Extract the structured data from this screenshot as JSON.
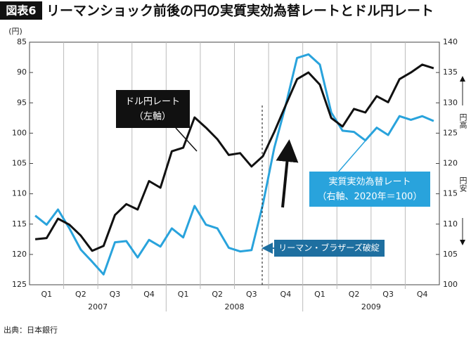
{
  "chart_data": {
    "type": "line",
    "figure_label": "図表6",
    "title": "リーマンショック前後の円の実質実効為替レートとドル円レート",
    "y_unit_label": "(円)",
    "source": "出典：日本銀行",
    "categories": [
      null,
      "Q1",
      null,
      null,
      "Q2",
      null,
      null,
      "Q3",
      null,
      null,
      "Q4",
      null,
      null,
      "Q1",
      null,
      null,
      "Q2",
      null,
      null,
      "Q3",
      null,
      null,
      "Q4",
      null,
      null,
      "Q1",
      null,
      null,
      "Q2",
      null,
      null,
      "Q3",
      null,
      null,
      "Q4",
      null
    ],
    "year_groups": [
      "2007",
      "2008",
      "2009"
    ],
    "ylim": [
      125,
      85
    ],
    "yticks": [
      85,
      90,
      95,
      100,
      105,
      110,
      115,
      120,
      125
    ],
    "y2lim": [
      100,
      140
    ],
    "y2ticks": [
      100,
      105,
      110,
      115,
      120,
      125,
      130,
      135,
      140
    ],
    "y2_notes": {
      "up": "円高",
      "down": "円安"
    },
    "series": [
      {
        "name": "ドル円レート",
        "name_note": "（左軸）",
        "color": "#111111",
        "values": [
          117.5,
          117.3,
          114.1,
          115.1,
          116.9,
          119.4,
          118.6,
          113.5,
          111.7,
          112.6,
          107.9,
          109.0,
          103.0,
          102.4,
          97.4,
          99.1,
          101.0,
          103.6,
          103.3,
          105.5,
          103.8,
          99.8,
          95.4,
          91.1,
          90.0,
          92.0,
          97.5,
          98.9,
          96.0,
          96.6,
          93.9,
          94.9,
          91.1,
          90.0,
          88.7,
          89.3
        ]
      },
      {
        "name": "実質実効為替レート",
        "name_note": "（右軸、2020年＝100）",
        "color": "#29a3dc",
        "axis": "y2",
        "values": [
          111.4,
          109.9,
          112.4,
          109.3,
          105.8,
          103.8,
          101.7,
          107.0,
          107.2,
          104.5,
          107.4,
          106.3,
          109.3,
          107.8,
          113.0,
          109.9,
          109.3,
          106.1,
          105.5,
          105.7,
          113.3,
          122.6,
          129.6,
          137.4,
          138.0,
          136.3,
          128.4,
          125.4,
          125.2,
          123.8,
          125.9,
          124.7,
          127.8,
          127.2,
          127.8,
          127.0
        ]
      }
    ],
    "annotation": "リーマン・ブラザーズ破綻"
  }
}
